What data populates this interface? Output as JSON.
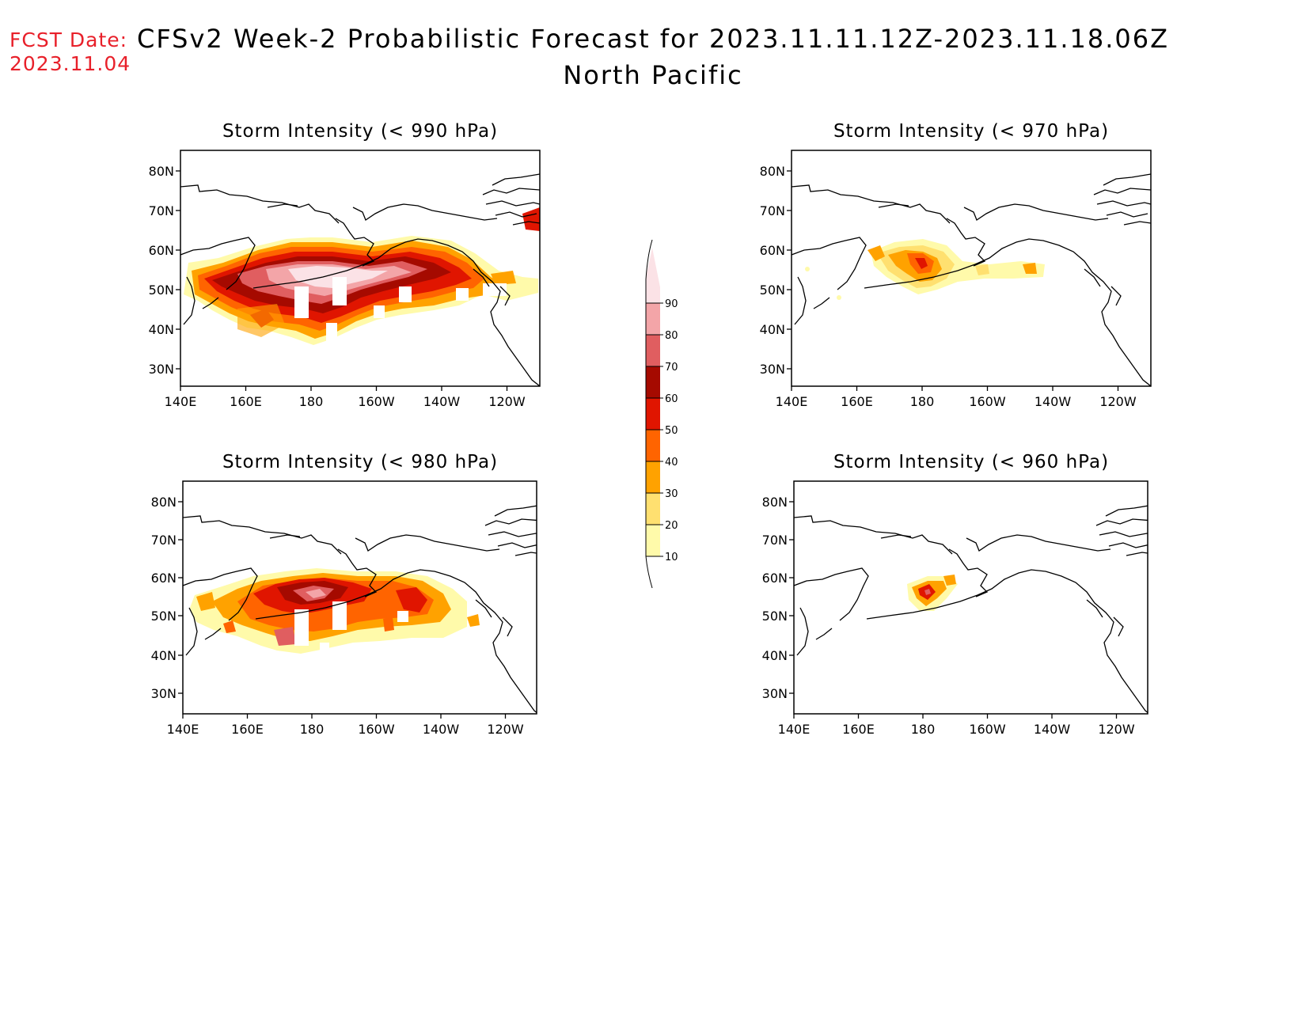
{
  "header": {
    "fcst_label": "FCST Date:",
    "fcst_date": "2023.11.04",
    "title": "CFSv2 Week-2 Probabilistic Forecast for 2023.11.11.12Z-2023.11.18.06Z",
    "subtitle": "North Pacific"
  },
  "axes": {
    "lon_ticks": [
      "140E",
      "160E",
      "180",
      "160W",
      "140W",
      "120W"
    ],
    "lat_ticks": [
      "80N",
      "70N",
      "60N",
      "50N",
      "40N",
      "30N"
    ]
  },
  "panels": [
    {
      "id": "p990",
      "title": "Storm Intensity (< 990 hPa)"
    },
    {
      "id": "p970",
      "title": "Storm Intensity (< 970 hPa)"
    },
    {
      "id": "p980",
      "title": "Storm Intensity (< 980 hPa)"
    },
    {
      "id": "p960",
      "title": "Storm Intensity (< 960 hPa)"
    }
  ],
  "colorbar": {
    "levels": [
      "10",
      "20",
      "30",
      "40",
      "50",
      "60",
      "70",
      "80",
      "90"
    ],
    "colors": [
      "#fffaaa",
      "#ffe070",
      "#ffa200",
      "#ff6400",
      "#e01500",
      "#a50a00",
      "#e05e60",
      "#f3a5a8",
      "#fbe2e6"
    ]
  }
}
